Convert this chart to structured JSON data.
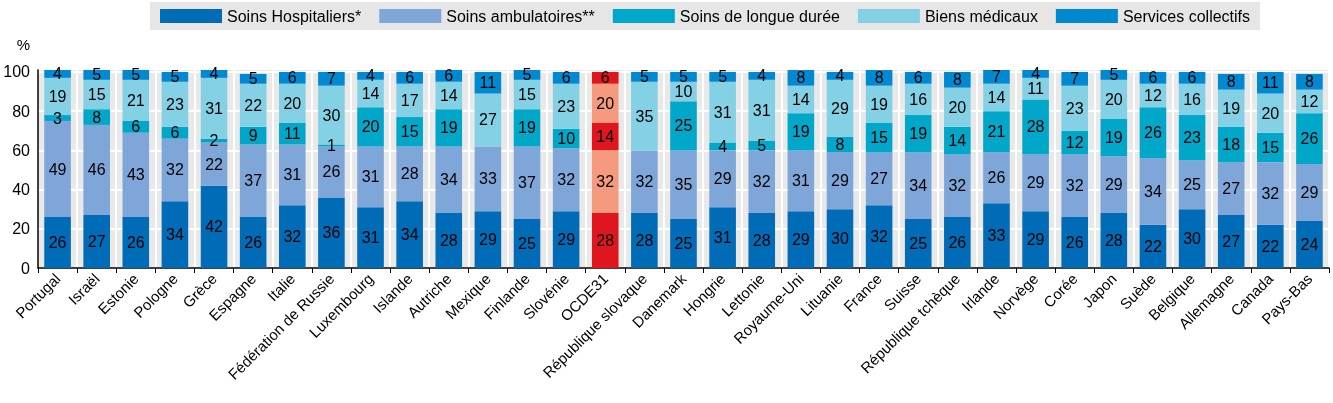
{
  "chart_data": {
    "type": "bar",
    "stacked": true,
    "ylabel": "%",
    "categories": [
      "Portugal",
      "Israël",
      "Estonie",
      "Pologne",
      "Grèce",
      "Espagne",
      "Italie",
      "Fédération de Russie",
      "Luxembourg",
      "Islande",
      "Autriche",
      "Mexique",
      "Finlande",
      "Slovénie",
      "OCDE31",
      "République slovaque",
      "Danemark",
      "Hongrie",
      "Lettonie",
      "Royaume-Uni",
      "Lituanie",
      "France",
      "Suisse",
      "République tchèque",
      "Irlande",
      "Norvège",
      "Corée",
      "Japon",
      "Suède",
      "Belgique",
      "Allemagne",
      "Canada",
      "Pays-Bas"
    ],
    "series": [
      {
        "name": "Soins Hospitaliers*",
        "color": "#006bb6",
        "colors": [
          "#006bb6",
          "#006bb6",
          "#006bb6",
          "#006bb6",
          "#006bb6",
          "#006bb6",
          "#006bb6",
          "#006bb6",
          "#006bb6",
          "#006bb6",
          "#006bb6",
          "#006bb6",
          "#006bb6",
          "#006bb6",
          "#e0161f",
          "#006bb6",
          "#006bb6",
          "#006bb6",
          "#006bb6",
          "#006bb6",
          "#006bb6",
          "#006bb6",
          "#006bb6",
          "#006bb6",
          "#006bb6",
          "#006bb6",
          "#006bb6",
          "#006bb6",
          "#006bb6",
          "#006bb6",
          "#006bb6",
          "#006bb6",
          "#006bb6"
        ],
        "values": [
          26,
          27,
          26,
          34,
          42,
          26,
          32,
          36,
          31,
          34,
          28,
          29,
          25,
          29,
          28,
          28,
          25,
          31,
          28,
          29,
          30,
          32,
          25,
          26,
          33,
          29,
          26,
          28,
          22,
          30,
          27,
          22,
          24
        ]
      },
      {
        "name": "Soins ambulatoires**",
        "color": "#7fa6d9",
        "colors": [
          "#7fa6d9",
          "#7fa6d9",
          "#7fa6d9",
          "#7fa6d9",
          "#7fa6d9",
          "#7fa6d9",
          "#7fa6d9",
          "#7fa6d9",
          "#7fa6d9",
          "#7fa6d9",
          "#7fa6d9",
          "#7fa6d9",
          "#7fa6d9",
          "#7fa6d9",
          "#f59a7e",
          "#7fa6d9",
          "#7fa6d9",
          "#7fa6d9",
          "#7fa6d9",
          "#7fa6d9",
          "#7fa6d9",
          "#7fa6d9",
          "#7fa6d9",
          "#7fa6d9",
          "#7fa6d9",
          "#7fa6d9",
          "#7fa6d9",
          "#7fa6d9",
          "#7fa6d9",
          "#7fa6d9",
          "#7fa6d9",
          "#7fa6d9",
          "#7fa6d9"
        ],
        "values": [
          49,
          46,
          43,
          32,
          22,
          37,
          31,
          26,
          31,
          28,
          34,
          33,
          37,
          32,
          32,
          32,
          35,
          29,
          32,
          31,
          29,
          27,
          34,
          32,
          26,
          29,
          32,
          29,
          34,
          25,
          27,
          32,
          29
        ]
      },
      {
        "name": "Soins de longue durée",
        "color": "#00a7c9",
        "colors": [
          "#00a7c9",
          "#00a7c9",
          "#00a7c9",
          "#00a7c9",
          "#00a7c9",
          "#00a7c9",
          "#00a7c9",
          "#00a7c9",
          "#00a7c9",
          "#00a7c9",
          "#00a7c9",
          "#00a7c9",
          "#00a7c9",
          "#00a7c9",
          "#e0161f",
          "#00a7c9",
          "#00a7c9",
          "#00a7c9",
          "#00a7c9",
          "#00a7c9",
          "#00a7c9",
          "#00a7c9",
          "#00a7c9",
          "#00a7c9",
          "#00a7c9",
          "#00a7c9",
          "#00a7c9",
          "#00a7c9",
          "#00a7c9",
          "#00a7c9",
          "#00a7c9",
          "#00a7c9",
          "#00a7c9"
        ],
        "values": [
          3,
          8,
          6,
          6,
          2,
          9,
          11,
          1,
          20,
          15,
          19,
          null,
          19,
          10,
          14,
          null,
          25,
          4,
          5,
          19,
          8,
          15,
          19,
          14,
          21,
          28,
          12,
          19,
          26,
          23,
          18,
          15,
          26
        ]
      },
      {
        "name": "Biens médicaux",
        "color": "#84d0e4",
        "colors": [
          "#84d0e4",
          "#84d0e4",
          "#84d0e4",
          "#84d0e4",
          "#84d0e4",
          "#84d0e4",
          "#84d0e4",
          "#84d0e4",
          "#84d0e4",
          "#84d0e4",
          "#84d0e4",
          "#84d0e4",
          "#84d0e4",
          "#84d0e4",
          "#f59a7e",
          "#84d0e4",
          "#84d0e4",
          "#84d0e4",
          "#84d0e4",
          "#84d0e4",
          "#84d0e4",
          "#84d0e4",
          "#84d0e4",
          "#84d0e4",
          "#84d0e4",
          "#84d0e4",
          "#84d0e4",
          "#84d0e4",
          "#84d0e4",
          "#84d0e4",
          "#84d0e4",
          "#84d0e4",
          "#84d0e4"
        ],
        "values": [
          19,
          15,
          21,
          23,
          31,
          22,
          20,
          30,
          14,
          17,
          14,
          27,
          15,
          23,
          20,
          35,
          10,
          31,
          31,
          14,
          29,
          19,
          16,
          20,
          14,
          11,
          23,
          20,
          12,
          16,
          19,
          20,
          12
        ]
      },
      {
        "name": "Services collectifs",
        "color": "#0088d0",
        "colors": [
          "#0088d0",
          "#0088d0",
          "#0088d0",
          "#0088d0",
          "#0088d0",
          "#0088d0",
          "#0088d0",
          "#0088d0",
          "#0088d0",
          "#0088d0",
          "#0088d0",
          "#0088d0",
          "#0088d0",
          "#0088d0",
          "#e0161f",
          "#0088d0",
          "#0088d0",
          "#0088d0",
          "#0088d0",
          "#0088d0",
          "#0088d0",
          "#0088d0",
          "#0088d0",
          "#0088d0",
          "#0088d0",
          "#0088d0",
          "#0088d0",
          "#0088d0",
          "#0088d0",
          "#0088d0",
          "#0088d0",
          "#0088d0",
          "#0088d0"
        ],
        "values": [
          4,
          5,
          5,
          5,
          4,
          5,
          6,
          7,
          4,
          6,
          6,
          11,
          5,
          6,
          6,
          5,
          5,
          5,
          4,
          8,
          4,
          8,
          6,
          8,
          7,
          4,
          7,
          5,
          6,
          6,
          8,
          11,
          8
        ]
      }
    ],
    "ylim": [
      0,
      101
    ],
    "yticks": [
      0,
      20,
      40,
      60,
      80,
      100
    ],
    "grid": true,
    "legend": "top",
    "data_labels": true
  }
}
